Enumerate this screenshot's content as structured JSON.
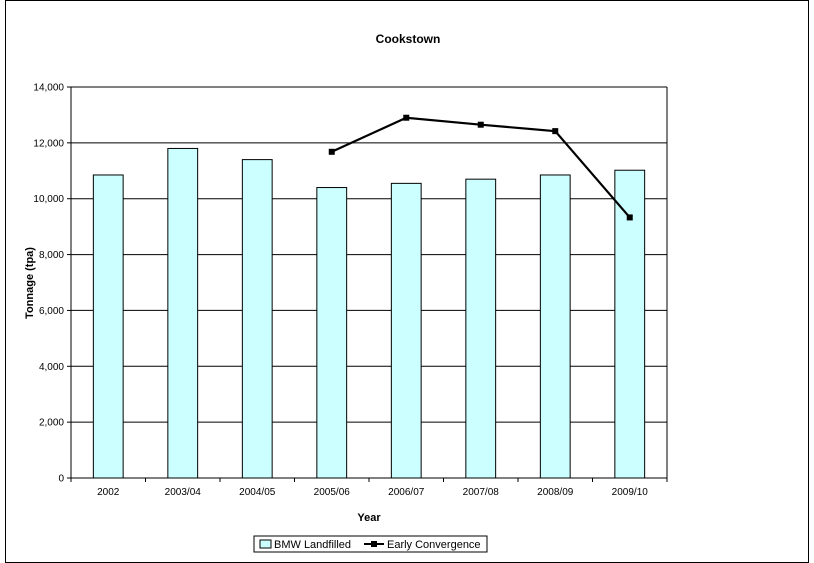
{
  "chart_data": {
    "type": "bar",
    "title": "Cookstown",
    "xlabel": "Year",
    "ylabel": "Tonnage (tpa)",
    "categories": [
      "2002",
      "2003/04",
      "2004/05",
      "2005/06",
      "2006/07",
      "2007/08",
      "2008/09",
      "2009/10"
    ],
    "ylim": [
      0,
      14000
    ],
    "yticks": [
      "0",
      "2,000",
      "4,000",
      "6,000",
      "8,000",
      "10,000",
      "12,000",
      "14,000"
    ],
    "ytick_values": [
      0,
      2000,
      4000,
      6000,
      8000,
      10000,
      12000,
      14000
    ],
    "series": [
      {
        "name": "BMW Landfilled",
        "type": "bar",
        "color": "#ccffff",
        "values": [
          10850,
          11800,
          11400,
          10400,
          10550,
          10700,
          10850,
          11020
        ]
      },
      {
        "name": "Early Convergence",
        "type": "line",
        "color": "#000000",
        "values": [
          null,
          null,
          null,
          11680,
          12900,
          12650,
          12420,
          9330
        ]
      }
    ],
    "grid": "horizontal",
    "legend_position": "bottom"
  }
}
